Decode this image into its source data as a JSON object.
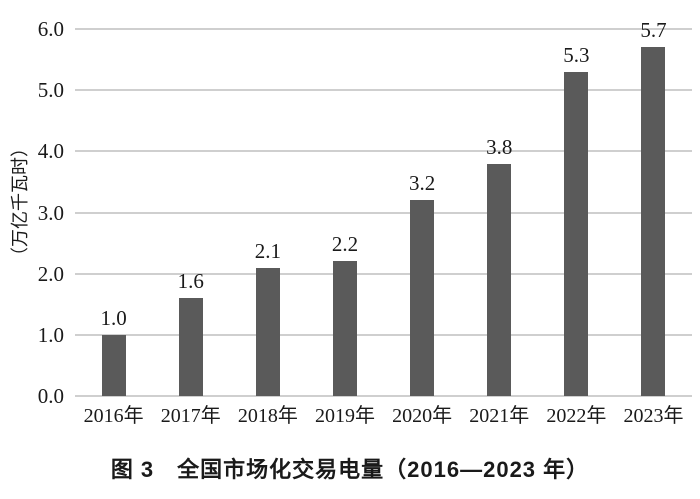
{
  "chart_data": {
    "type": "bar",
    "title": "图 3　全国市场化交易电量（2016—2023 年）",
    "ylabel": "（万亿千瓦时）",
    "categories": [
      "2016年",
      "2017年",
      "2018年",
      "2019年",
      "2020年",
      "2021年",
      "2022年",
      "2023年"
    ],
    "values": [
      1.0,
      1.6,
      2.1,
      2.2,
      3.2,
      3.8,
      5.3,
      5.7
    ],
    "value_labels": [
      "1.0",
      "1.6",
      "2.1",
      "2.2",
      "3.2",
      "3.8",
      "5.3",
      "5.7"
    ],
    "ylim": [
      0,
      6.0
    ],
    "ytick_step": 1.0,
    "ytick_labels": [
      "0.0",
      "1.0",
      "2.0",
      "3.0",
      "4.0",
      "5.0",
      "6.0"
    ],
    "grid": true,
    "legend": "none",
    "colors": {
      "bar": "#5a5a5a",
      "gridline": "#cfcfcf",
      "text": "#1a1a1a",
      "background": "#ffffff"
    }
  }
}
